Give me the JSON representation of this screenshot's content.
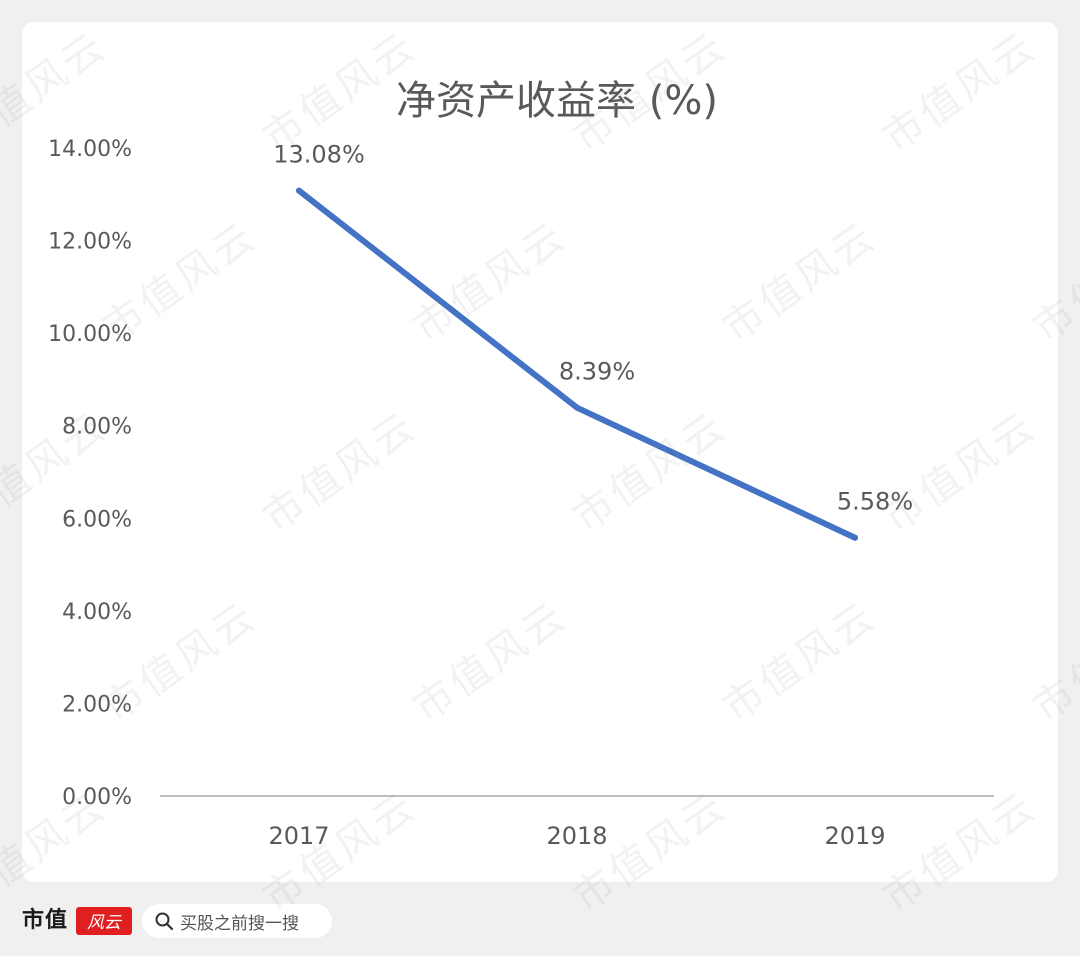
{
  "chart_data": {
    "type": "line",
    "title": "净资产收益率 (%)",
    "categories": [
      "2017",
      "2018",
      "2019"
    ],
    "series": [
      {
        "values": [
          13.08,
          8.39,
          5.58
        ],
        "data_labels": [
          "13.08%",
          "8.39%",
          "5.58%"
        ],
        "color": "#4472c4"
      }
    ],
    "ylim": [
      0,
      14
    ],
    "yticks": [
      0,
      2,
      4,
      6,
      8,
      10,
      12,
      14
    ],
    "ytick_labels": [
      "0.00%",
      "2.00%",
      "4.00%",
      "6.00%",
      "8.00%",
      "10.00%",
      "12.00%",
      "14.00%"
    ],
    "grid": false,
    "legend": "none"
  },
  "footer": {
    "brand": "市值",
    "logo_text": "风云",
    "search_icon": "search-icon",
    "search_text": "买股之前搜一搜"
  },
  "watermark": "市值风云",
  "colors": {
    "line": "#4472c4",
    "text": "#595959",
    "axis": "#bfbfbf",
    "background": "#f0f0f0",
    "card": "#ffffff",
    "logo": "#e02020"
  }
}
